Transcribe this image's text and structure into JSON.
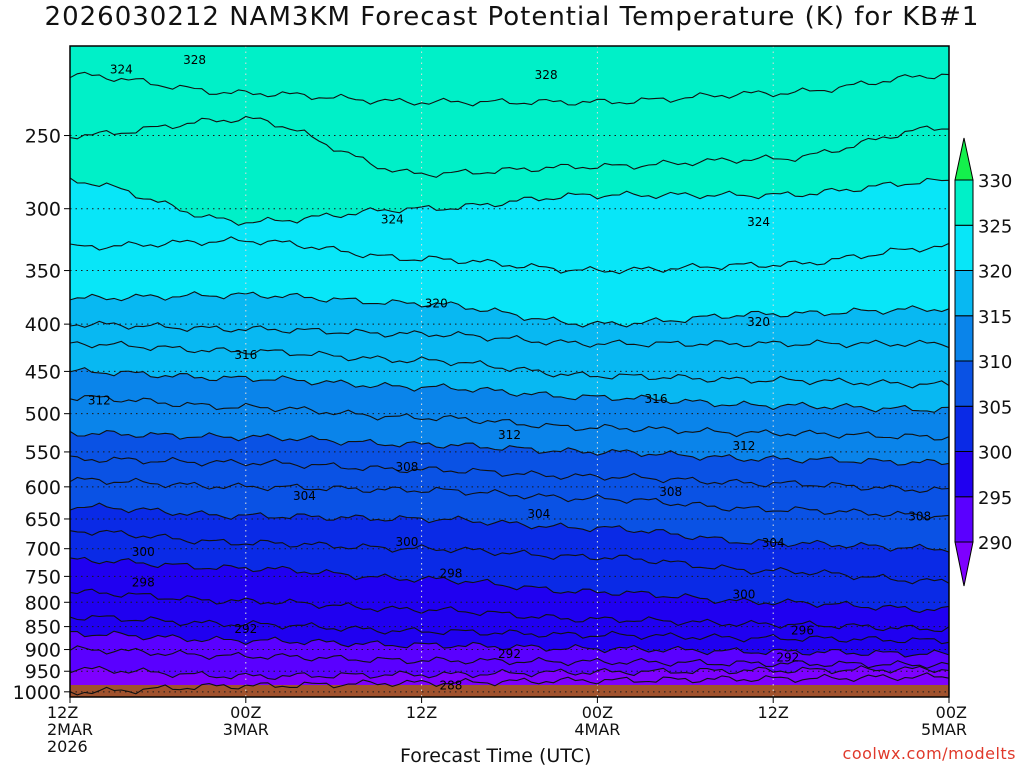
{
  "title": "2026030212 NAM3KM Forecast Potential Temperature (K) for KB#1",
  "credit": "coolwx.com/modelts",
  "chart_data": {
    "type": "filled-contour",
    "title": "2026030212 NAM3KM Forecast Potential Temperature (K) for KB#1",
    "xlabel": "Forecast Time (UTC)",
    "ylabel": "",
    "x_ticks": [
      {
        "hour": 0,
        "lines": [
          "12Z",
          "2MAR",
          "2026"
        ]
      },
      {
        "hour": 12,
        "lines": [
          "00Z",
          "3MAR"
        ]
      },
      {
        "hour": 24,
        "lines": [
          "12Z"
        ]
      },
      {
        "hour": 36,
        "lines": [
          "00Z",
          "4MAR"
        ]
      },
      {
        "hour": 48,
        "lines": [
          "12Z"
        ]
      },
      {
        "hour": 60,
        "lines": [
          "00Z",
          "5MAR"
        ]
      }
    ],
    "y_ticks": [
      250,
      300,
      350,
      400,
      450,
      500,
      550,
      600,
      650,
      700,
      750,
      800,
      850,
      900,
      950,
      1000
    ],
    "x_range_hours": [
      0,
      60
    ],
    "y_range_hpa": [
      200,
      1013
    ],
    "y_scale": "log-pressure",
    "colorbar": {
      "levels": [
        290,
        295,
        300,
        305,
        310,
        315,
        320,
        325,
        330
      ],
      "labels": [
        "290",
        "295",
        "300",
        "305",
        "310",
        "315",
        "320",
        "325",
        "330"
      ],
      "colors": [
        "#7e00ff",
        "#5a00ff",
        "#2000f0",
        "#0a2ae6",
        "#0a52e4",
        "#0a84ea",
        "#08b8f2",
        "#08e6f8",
        "#00f0c8",
        "#00f07a",
        "#14f04c"
      ]
    },
    "isentropes": [
      {
        "theta": 288,
        "p": [
          1000,
          985,
          978,
          972,
          968,
          963
        ]
      },
      {
        "theta": 290,
        "p": [
          945,
          962,
          958,
          952,
          948,
          945
        ]
      },
      {
        "theta": 292,
        "p": [
          900,
          915,
          925,
          928,
          932,
          935
        ]
      },
      {
        "theta": 294,
        "p": [
          865,
          880,
          890,
          898,
          905,
          910
        ]
      },
      {
        "theta": 296,
        "p": [
          830,
          845,
          860,
          868,
          875,
          880
        ]
      },
      {
        "theta": 298,
        "p": [
          780,
          798,
          815,
          835,
          845,
          855
        ]
      },
      {
        "theta": 300,
        "p": [
          720,
          735,
          755,
          780,
          800,
          815
        ]
      },
      {
        "theta": 302,
        "p": [
          670,
          690,
          700,
          715,
          740,
          760
        ]
      },
      {
        "theta": 304,
        "p": [
          630,
          645,
          650,
          665,
          690,
          700
        ]
      },
      {
        "theta": 306,
        "p": [
          590,
          600,
          605,
          618,
          635,
          645
        ]
      },
      {
        "theta": 308,
        "p": [
          560,
          565,
          575,
          585,
          595,
          605
        ]
      },
      {
        "theta": 310,
        "p": [
          525,
          530,
          540,
          550,
          560,
          565
        ]
      },
      {
        "theta": 312,
        "p": [
          480,
          492,
          505,
          518,
          525,
          530
        ]
      },
      {
        "theta": 314,
        "p": [
          450,
          458,
          468,
          480,
          490,
          495
        ]
      },
      {
        "theta": 316,
        "p": [
          420,
          428,
          438,
          455,
          460,
          465
        ]
      },
      {
        "theta": 318,
        "p": [
          400,
          405,
          410,
          420,
          420,
          420
        ]
      },
      {
        "theta": 320,
        "p": [
          375,
          372,
          380,
          400,
          390,
          385
        ]
      },
      {
        "theta": 322,
        "p": [
          330,
          325,
          340,
          350,
          345,
          330
        ]
      },
      {
        "theta": 324,
        "p": [
          280,
          310,
          300,
          290,
          290,
          280
        ]
      },
      {
        "theta": 326,
        "p": [
          250,
          240,
          275,
          270,
          265,
          245
        ]
      },
      {
        "theta": 328,
        "p": [
          215,
          225,
          230,
          230,
          225,
          215
        ]
      }
    ],
    "contour_labels": [
      {
        "text": "324",
        "hour": 3.5,
        "p": 212
      },
      {
        "text": "328",
        "hour": 8.5,
        "p": 207
      },
      {
        "text": "328",
        "hour": 32.5,
        "p": 215
      },
      {
        "text": "324",
        "hour": 22,
        "p": 308
      },
      {
        "text": "324",
        "hour": 47,
        "p": 310
      },
      {
        "text": "320",
        "hour": 25,
        "p": 380
      },
      {
        "text": "320",
        "hour": 47,
        "p": 398
      },
      {
        "text": "316",
        "hour": 12,
        "p": 432
      },
      {
        "text": "316",
        "hour": 40,
        "p": 482
      },
      {
        "text": "312",
        "hour": 2,
        "p": 484
      },
      {
        "text": "312",
        "hour": 30,
        "p": 527
      },
      {
        "text": "312",
        "hour": 46,
        "p": 542
      },
      {
        "text": "308",
        "hour": 23,
        "p": 571
      },
      {
        "text": "308",
        "hour": 41,
        "p": 608
      },
      {
        "text": "308",
        "hour": 58,
        "p": 646
      },
      {
        "text": "304",
        "hour": 16,
        "p": 614
      },
      {
        "text": "304",
        "hour": 32,
        "p": 642
      },
      {
        "text": "304",
        "hour": 48,
        "p": 690
      },
      {
        "text": "300",
        "hour": 5,
        "p": 706
      },
      {
        "text": "300",
        "hour": 23,
        "p": 688
      },
      {
        "text": "300",
        "hour": 46,
        "p": 785
      },
      {
        "text": "298",
        "hour": 5,
        "p": 762
      },
      {
        "text": "298",
        "hour": 26,
        "p": 745
      },
      {
        "text": "296",
        "hour": 50,
        "p": 858
      },
      {
        "text": "292",
        "hour": 12,
        "p": 855
      },
      {
        "text": "292",
        "hour": 30,
        "p": 910
      },
      {
        "text": "292",
        "hour": 49,
        "p": 918
      },
      {
        "text": "288",
        "hour": 26,
        "p": 984
      }
    ]
  }
}
